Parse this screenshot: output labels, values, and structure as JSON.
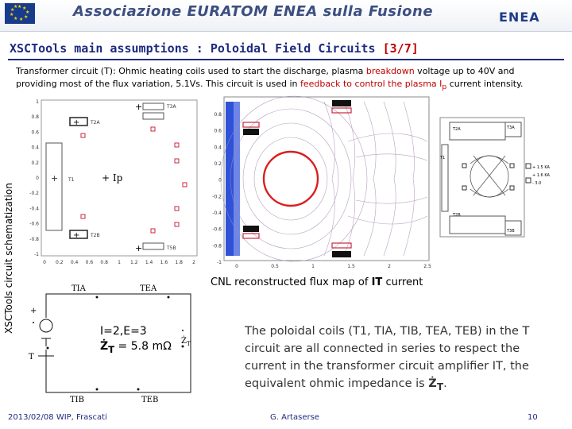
{
  "header": {
    "org_name": "Associazione EURATOM ENEA sulla Fusione",
    "logo_text": "ENEA"
  },
  "slide": {
    "title_main": "XSCTools main assumptions : Poloidal Field Circuits ",
    "title_ref": "[3/7]",
    "intro": {
      "part1": "Transformer circuit (T): Ohmic heating coils used to start the discharge, plasma ",
      "part2": "breakdown",
      "part3": " voltage up to 40V and providing most of the flux variation, 5.1Vs. This circuit is used in ",
      "part4": "feedback to control the plasma I",
      "part4_sub": "p",
      "part5": " current intensity."
    },
    "side_label": "XSCTools circuit schematization"
  },
  "left_plot": {
    "coil_labels": [
      "T3A",
      "T2A",
      "T1",
      "T2B",
      "T5B"
    ],
    "plasma_label": "+ Ip",
    "y_ticks": [
      "1",
      "0.8",
      "0.6",
      "0.4",
      "0.2",
      "0",
      "-0.2",
      "-0.4",
      "-0.6",
      "-0.8",
      "-1"
    ],
    "x_ticks": [
      "0",
      "0.2",
      "0.4",
      "0.6",
      "0.8",
      "1",
      "1.2",
      "1.4",
      "1.6",
      "1.8",
      "2"
    ]
  },
  "flux_map": {
    "caption_part1": "CNL reconstructed flux map of ",
    "caption_bold": "IT",
    "caption_part2": " current",
    "y_ticks": [
      "0.8",
      "0.6",
      "0.4",
      "0.2",
      "0",
      "-0.2",
      "-0.4",
      "-0.6",
      "-0.8",
      "-1"
    ],
    "x_ticks": [
      "0",
      "0.5",
      "1",
      "1.5",
      "2",
      "2.5"
    ]
  },
  "right_schematic": {
    "labels": [
      "T2A",
      "T3A",
      "T1",
      "T2B",
      "T3B"
    ],
    "side_values": [
      "+ 1.5 KA",
      "+ 1.6 KA",
      "- 3.0"
    ]
  },
  "circuit": {
    "labels_top": [
      "TIA",
      "TEA"
    ],
    "labels_bottom": [
      "TIB",
      "TEB"
    ],
    "label_left": "T",
    "label_zt": "Ż",
    "label_zt_sub": "T",
    "eq_line1": "I=2,E=3",
    "eq_line2_z": "Ż",
    "eq_line2_sub": "T",
    "eq_line2_rest": " = 5.8 mΩ"
  },
  "poloidal_text": {
    "text": "The poloidal coils (T1, TIA, TIB, TEA, TEB) in the T circuit are all connected in series to respect the current in the transformer circuit amplifier IT, the equivalent ohmic impedance is ",
    "z": "Ż",
    "z_sub": "T",
    "end": "."
  },
  "footer": {
    "date_place": "2013/02/08   WIP, Frascati",
    "author": "G. Artaserse",
    "page": "10"
  },
  "colors": {
    "title": "#1e2a80",
    "accent_red": "#c00000",
    "coil_red": "#c8283c",
    "plasma_red": "#d82020"
  }
}
